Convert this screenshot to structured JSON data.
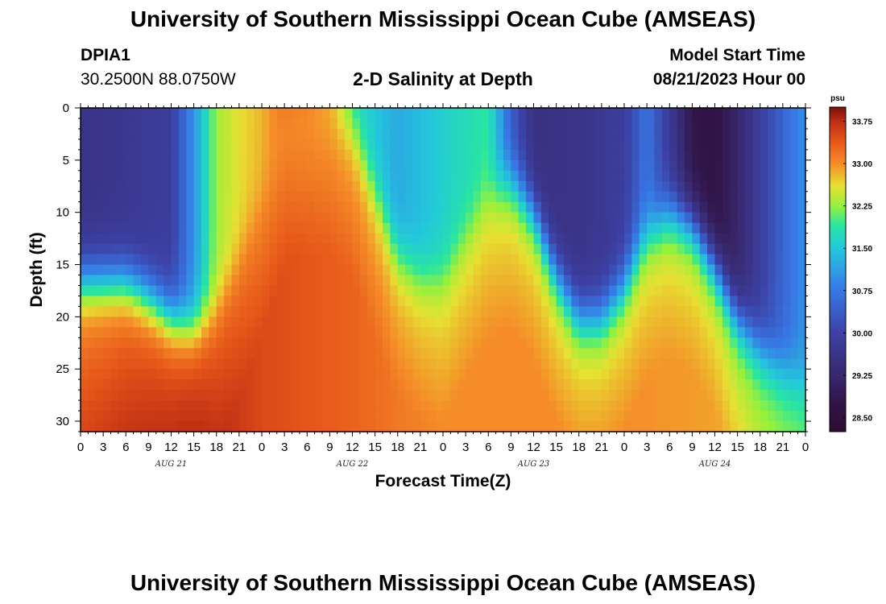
{
  "header": {
    "title": "University of Southern Mississippi Ocean Cube (AMSEAS)",
    "station_id": "DPIA1",
    "coords": "30.2500N  88.0750W",
    "plot_title": "2-D Salinity at Depth",
    "model_start_label": "Model Start Time",
    "model_start_value": "08/21/2023 Hour 00"
  },
  "footer": {
    "title": "University of Southern Mississippi Ocean Cube (AMSEAS)"
  },
  "chart_data": {
    "type": "heatmap",
    "title": "2-D Salinity at Depth",
    "xlabel": "Forecast Time(Z)",
    "ylabel": "Depth (ft)",
    "x_tick_labels": [
      "0",
      "3",
      "6",
      "9",
      "12",
      "15",
      "18",
      "21",
      "0",
      "3",
      "6",
      "9",
      "12",
      "15",
      "18",
      "21",
      "0",
      "3",
      "6",
      "9",
      "12",
      "15",
      "18",
      "21",
      "0",
      "3",
      "6",
      "9",
      "12",
      "15",
      "18",
      "21",
      "0"
    ],
    "day_labels": [
      {
        "label": "AUG 21",
        "hour": 12
      },
      {
        "label": "AUG 22",
        "hour": 36
      },
      {
        "label": "AUG 23",
        "hour": 60
      },
      {
        "label": "AUG 24",
        "hour": 84
      }
    ],
    "xlim_hours": [
      0,
      96
    ],
    "ylim_ft": [
      0,
      31
    ],
    "y_ticks": [
      0,
      5,
      10,
      15,
      20,
      25,
      30
    ],
    "colorbar": {
      "unit": "psu",
      "min": 28.25,
      "max": 34.0,
      "labels": [
        "33.75",
        "33.00",
        "32.25",
        "31.50",
        "30.75",
        "30.00",
        "29.25",
        "28.50"
      ]
    },
    "interface_depth_ft": [
      {
        "hour": 0,
        "depth": 16.5
      },
      {
        "hour": 6,
        "depth": 16.5
      },
      {
        "hour": 9,
        "depth": 18
      },
      {
        "hour": 12,
        "depth": 20
      },
      {
        "hour": 15,
        "depth": 21
      },
      {
        "hour": 18,
        "depth": 19
      },
      {
        "hour": 21,
        "depth": 14
      },
      {
        "hour": 24,
        "depth": 8
      },
      {
        "hour": 27,
        "depth": 1
      },
      {
        "hour": 30,
        "depth": 0
      },
      {
        "hour": 33,
        "depth": 0
      },
      {
        "hour": 36,
        "depth": 2
      },
      {
        "hour": 39,
        "depth": 8
      },
      {
        "hour": 42,
        "depth": 14
      },
      {
        "hour": 45,
        "depth": 16
      },
      {
        "hour": 48,
        "depth": 16
      },
      {
        "hour": 51,
        "depth": 12
      },
      {
        "hour": 54,
        "depth": 8
      },
      {
        "hour": 57,
        "depth": 7
      },
      {
        "hour": 60,
        "depth": 10
      },
      {
        "hour": 63,
        "depth": 16
      },
      {
        "hour": 66,
        "depth": 20
      },
      {
        "hour": 69,
        "depth": 20
      },
      {
        "hour": 72,
        "depth": 17
      },
      {
        "hour": 75,
        "depth": 12
      },
      {
        "hour": 78,
        "depth": 10
      },
      {
        "hour": 81,
        "depth": 11
      },
      {
        "hour": 84,
        "depth": 15
      },
      {
        "hour": 87,
        "depth": 20
      },
      {
        "hour": 90,
        "depth": 23
      },
      {
        "hour": 93,
        "depth": 25
      },
      {
        "hour": 96,
        "depth": 26
      }
    ],
    "surface_salinity_psu": [
      {
        "hour": 0,
        "value": 29.6
      },
      {
        "hour": 6,
        "value": 29.7
      },
      {
        "hour": 12,
        "value": 29.9
      },
      {
        "hour": 15,
        "value": 31.0
      },
      {
        "hour": 18,
        "value": 32.3
      },
      {
        "hour": 21,
        "value": 32.6
      },
      {
        "hour": 24,
        "value": 32.8
      },
      {
        "hour": 27,
        "value": 33.2
      },
      {
        "hour": 30,
        "value": 33.2
      },
      {
        "hour": 33,
        "value": 32.9
      },
      {
        "hour": 36,
        "value": 31.8
      },
      {
        "hour": 42,
        "value": 31.2
      },
      {
        "hour": 48,
        "value": 31.6
      },
      {
        "hour": 54,
        "value": 31.9
      },
      {
        "hour": 57,
        "value": 30.4
      },
      {
        "hour": 60,
        "value": 29.5
      },
      {
        "hour": 66,
        "value": 29.6
      },
      {
        "hour": 72,
        "value": 29.9
      },
      {
        "hour": 75,
        "value": 30.7
      },
      {
        "hour": 78,
        "value": 29.8
      },
      {
        "hour": 81,
        "value": 28.8
      },
      {
        "hour": 84,
        "value": 28.7
      },
      {
        "hour": 87,
        "value": 29.2
      },
      {
        "hour": 90,
        "value": 29.9
      },
      {
        "hour": 93,
        "value": 30.5
      },
      {
        "hour": 96,
        "value": 31.0
      }
    ],
    "bottom_salinity_psu": [
      {
        "hour": 0,
        "value": 33.5
      },
      {
        "hour": 15,
        "value": 33.9
      },
      {
        "hour": 24,
        "value": 33.5
      },
      {
        "hour": 36,
        "value": 33.3
      },
      {
        "hour": 48,
        "value": 33.0
      },
      {
        "hour": 60,
        "value": 33.0
      },
      {
        "hour": 72,
        "value": 33.0
      },
      {
        "hour": 84,
        "value": 32.9
      },
      {
        "hour": 90,
        "value": 32.6
      },
      {
        "hour": 96,
        "value": 32.4
      }
    ]
  }
}
